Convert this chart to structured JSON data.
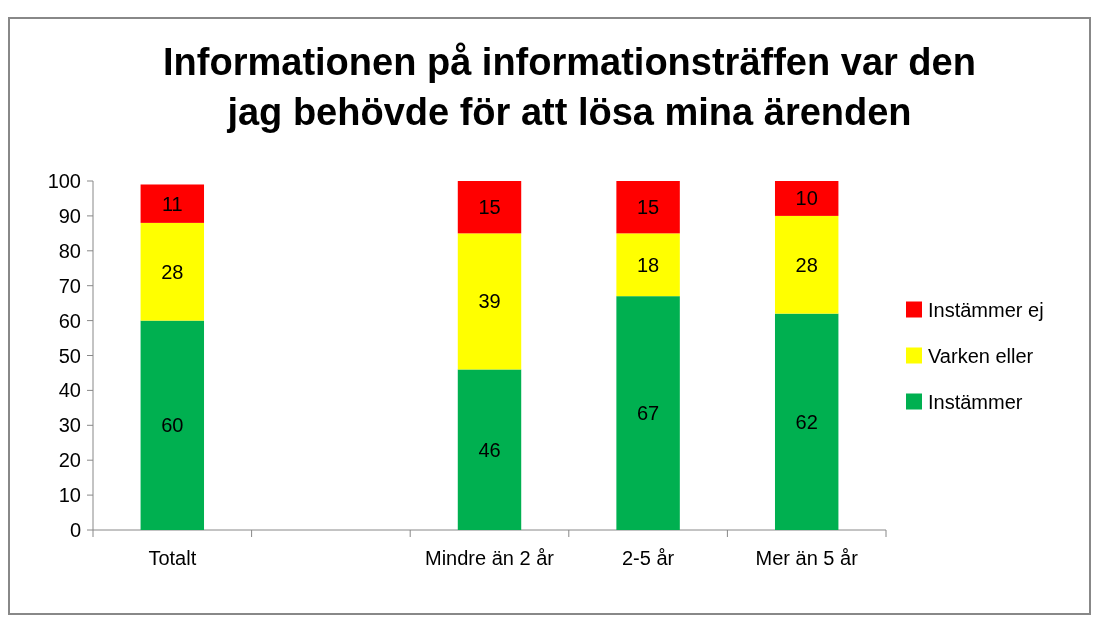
{
  "chart_data": {
    "type": "bar",
    "title": "Informationen på informationsträffen var den jag behövde för att lösa mina ärenden",
    "categories": [
      "Totalt",
      null,
      "Mindre än 2 år",
      "2-5 år",
      "Mer än 5 år"
    ],
    "series": [
      {
        "name": "Instämmer",
        "color": "#00b050",
        "values": [
          60,
          null,
          46,
          67,
          62
        ]
      },
      {
        "name": "Varken eller",
        "color": "#ffff00",
        "values": [
          28,
          null,
          39,
          18,
          28
        ]
      },
      {
        "name": "Instämmer ej",
        "color": "#ff0000",
        "values": [
          11,
          null,
          15,
          15,
          10
        ]
      }
    ],
    "stacked": true,
    "data_labels": true,
    "ylim": [
      0,
      100
    ],
    "yticks": [
      0,
      10,
      20,
      30,
      40,
      50,
      60,
      70,
      80,
      90,
      100
    ],
    "grid": false,
    "legend": "right"
  }
}
